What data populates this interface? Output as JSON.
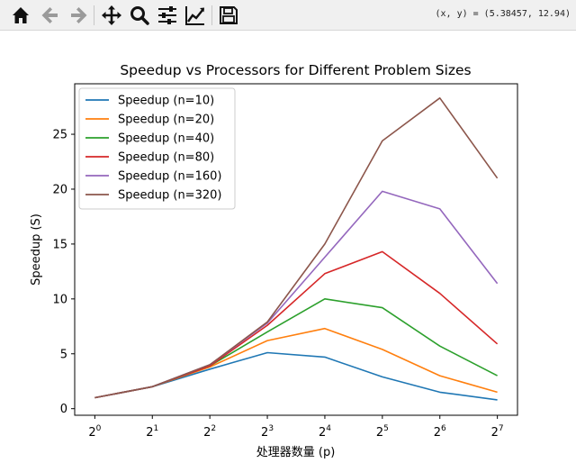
{
  "toolbar": {
    "buttons": [
      {
        "name": "home-icon",
        "label": "Home"
      },
      {
        "name": "back-icon",
        "label": "Back"
      },
      {
        "name": "forward-icon",
        "label": "Forward"
      },
      {
        "name": "pan-icon",
        "label": "Pan"
      },
      {
        "name": "zoom-icon",
        "label": "Zoom"
      },
      {
        "name": "subplots-icon",
        "label": "Configure subplots"
      },
      {
        "name": "edit-axes-icon",
        "label": "Edit axis"
      },
      {
        "name": "save-icon",
        "label": "Save"
      }
    ],
    "coords": "(x, y) = (5.38457, 12.94)"
  },
  "chart_data": {
    "type": "line",
    "title": "Speedup vs Processors for Different Problem Sizes",
    "xlabel": "处理器数量 (p)",
    "ylabel": "Speedup (S)",
    "x": [
      1,
      2,
      4,
      8,
      16,
      32,
      64,
      128
    ],
    "x_scale": "log2",
    "xticks": [
      {
        "value": 1,
        "base": "2",
        "exp": "0"
      },
      {
        "value": 2,
        "base": "2",
        "exp": "1"
      },
      {
        "value": 4,
        "base": "2",
        "exp": "2"
      },
      {
        "value": 8,
        "base": "2",
        "exp": "3"
      },
      {
        "value": 16,
        "base": "2",
        "exp": "4"
      },
      {
        "value": 32,
        "base": "2",
        "exp": "5"
      },
      {
        "value": 64,
        "base": "2",
        "exp": "6"
      },
      {
        "value": 128,
        "base": "2",
        "exp": "7"
      }
    ],
    "yticks": [
      0,
      5,
      10,
      15,
      20,
      25
    ],
    "ylim": [
      -0.6,
      29.6
    ],
    "grid": false,
    "legend_position": "upper-left",
    "series": [
      {
        "name": "Speedup (n=10)",
        "color": "#1f77b4",
        "values": [
          1.0,
          2.0,
          3.6,
          5.1,
          4.7,
          2.9,
          1.5,
          0.8
        ]
      },
      {
        "name": "Speedup (n=20)",
        "color": "#ff7f0e",
        "values": [
          1.0,
          2.0,
          3.8,
          6.2,
          7.3,
          5.4,
          3.0,
          1.5
        ]
      },
      {
        "name": "Speedup (n=40)",
        "color": "#2ca02c",
        "values": [
          1.0,
          2.0,
          3.9,
          7.0,
          10.0,
          9.2,
          5.7,
          3.0
        ]
      },
      {
        "name": "Speedup (n=80)",
        "color": "#d62728",
        "values": [
          1.0,
          2.0,
          3.9,
          7.6,
          12.3,
          14.3,
          10.5,
          5.9
        ]
      },
      {
        "name": "Speedup (n=160)",
        "color": "#9467bd",
        "values": [
          1.0,
          2.0,
          4.0,
          7.8,
          13.8,
          19.8,
          18.2,
          11.4
        ]
      },
      {
        "name": "Speedup (n=320)",
        "color": "#8c564b",
        "values": [
          1.0,
          2.0,
          4.0,
          7.9,
          15.0,
          24.4,
          28.3,
          21.0
        ]
      }
    ]
  }
}
